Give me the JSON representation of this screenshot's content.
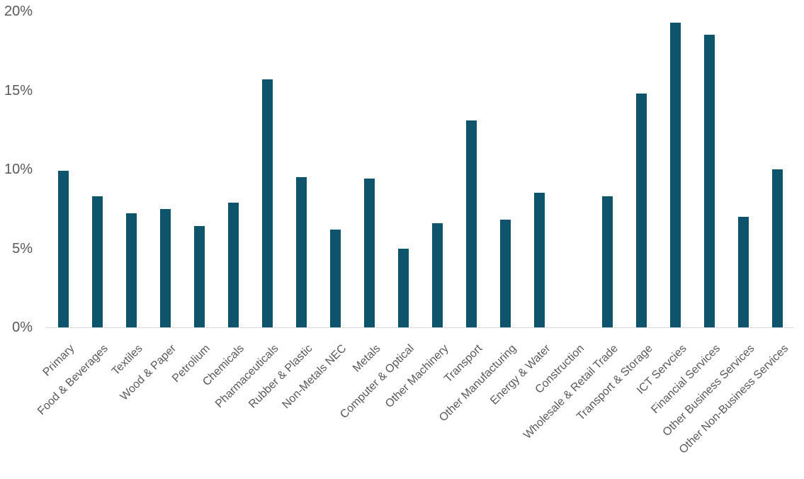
{
  "chart_data": {
    "type": "bar",
    "title": "",
    "xlabel": "",
    "ylabel": "",
    "categories": [
      "Primary",
      "Food & Beverages",
      "Textiles",
      "Wood & Paper",
      "Petrolium",
      "Chemicals",
      "Pharmaceuticals",
      "Rubber & Plastic",
      "Non-Metals NEC",
      "Metals",
      "Computer & Optical",
      "Other Machinery",
      "Transport",
      "Other Manufacturing",
      "Energy & Water",
      "Construction",
      "Wholesale & Retail Trade",
      "Transport & Storage",
      "ICT Servcies",
      "Financial Services",
      "Other Business Services",
      "Other Non-Business Services"
    ],
    "values": [
      9.9,
      8.3,
      7.2,
      7.5,
      6.4,
      7.9,
      15.7,
      9.5,
      6.2,
      9.4,
      5.0,
      6.6,
      13.1,
      6.8,
      8.5,
      0,
      8.3,
      14.8,
      19.3,
      18.5,
      7.0,
      10.0
    ],
    "unit": "%",
    "ylim": [
      0,
      20
    ],
    "ytick_values": [
      0,
      5,
      10,
      15,
      20
    ],
    "ytick_labels": [
      "0%",
      "5%",
      "10%",
      "15%",
      "20%"
    ],
    "grid": false,
    "legend": "none",
    "x_labels_rotation_deg": -45,
    "colors": {
      "bar": "#0d546c",
      "axis_line": "#d9d9d9",
      "tick_label": "#595959"
    }
  }
}
